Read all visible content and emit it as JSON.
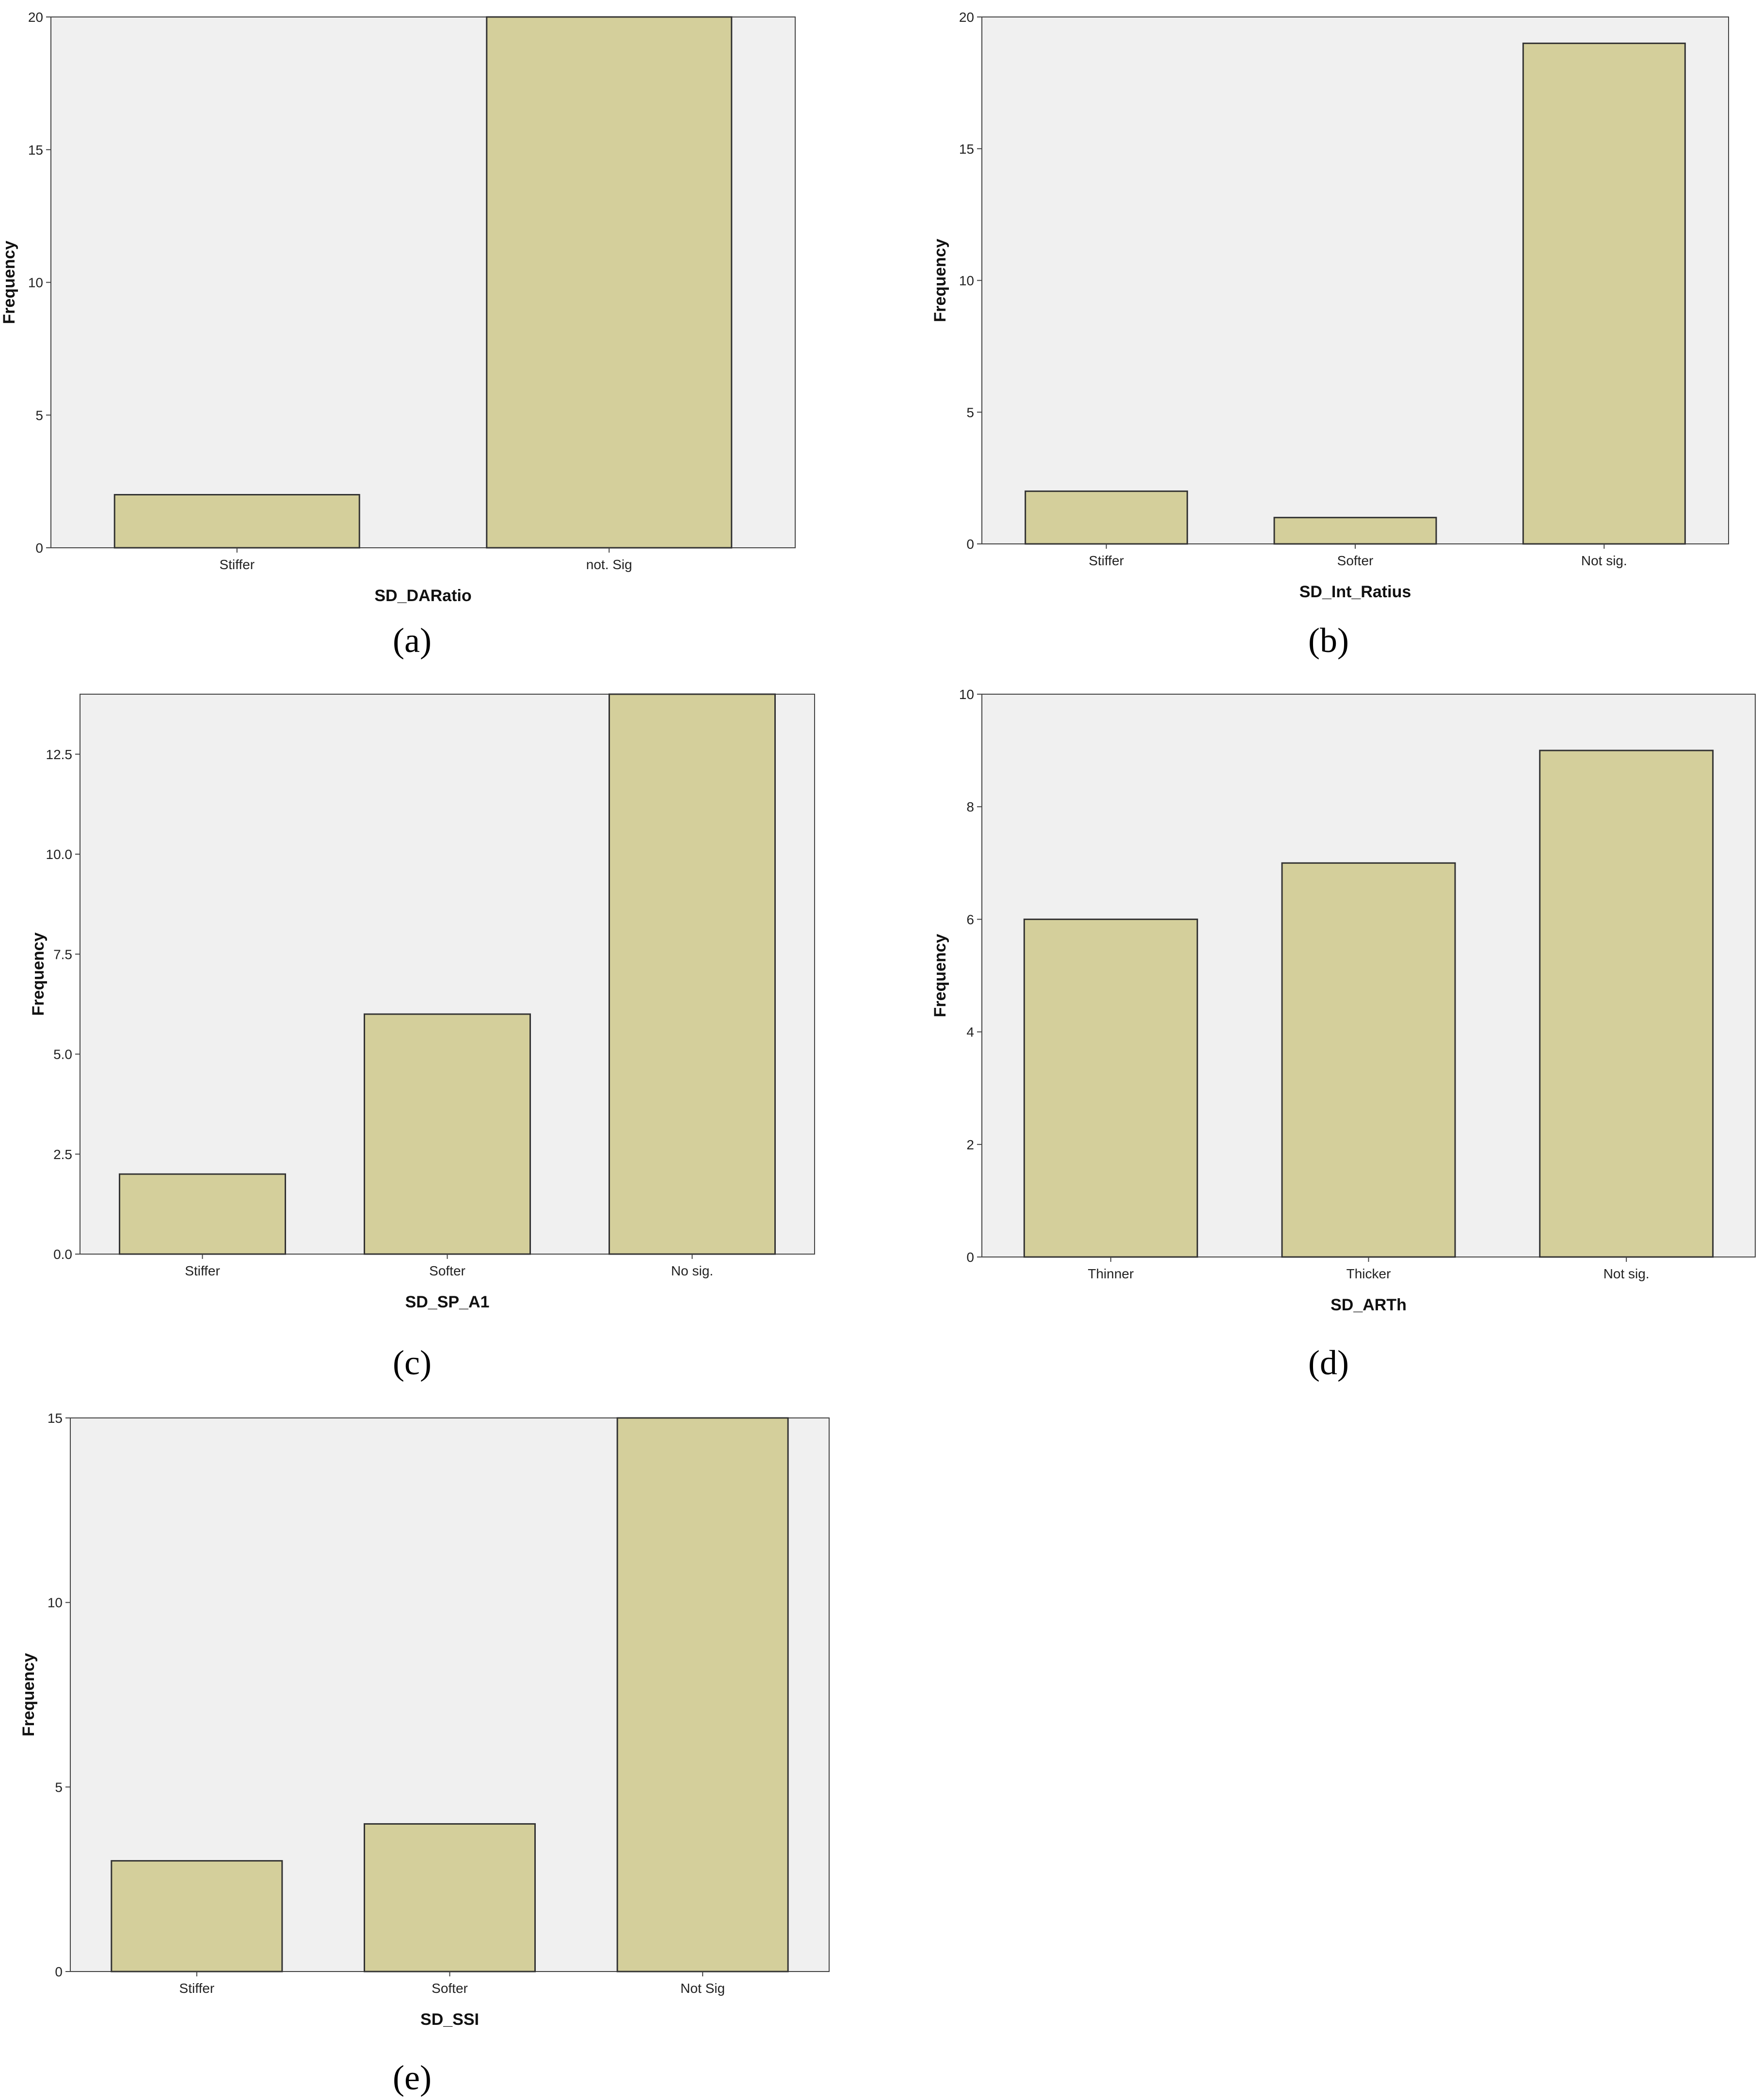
{
  "figure": {
    "colors": {
      "plot_bg": "#f0f0f0",
      "bar_fill": "#d4cf9b",
      "bar_stroke": "#333333",
      "axis": "#444444"
    }
  },
  "chart_data": [
    {
      "type": "bar",
      "panel": "a",
      "panel_label": "(a)",
      "xlabel": "SD_DARatio",
      "ylabel": "Frequency",
      "categories": [
        "Stiffer",
        "not. Sig"
      ],
      "values": [
        2,
        20
      ],
      "ylim": [
        0,
        20
      ],
      "yticks": [
        0,
        5,
        10,
        15,
        20
      ],
      "ytick_labels": [
        "0",
        "5",
        "10",
        "15",
        "20"
      ],
      "grid": false
    },
    {
      "type": "bar",
      "panel": "b",
      "panel_label": "(b)",
      "xlabel": "SD_Int_Ratius",
      "ylabel": "Frequency",
      "categories": [
        "Stiffer",
        "Softer",
        "Not sig."
      ],
      "values": [
        2,
        1,
        19
      ],
      "ylim": [
        0,
        20
      ],
      "yticks": [
        0,
        5,
        10,
        15,
        20
      ],
      "ytick_labels": [
        "0",
        "5",
        "10",
        "15",
        "20"
      ],
      "grid": false
    },
    {
      "type": "bar",
      "panel": "c",
      "panel_label": "(c)",
      "xlabel": "SD_SP_A1",
      "ylabel": "Frequency",
      "categories": [
        "Stiffer",
        "Softer",
        "No sig."
      ],
      "values": [
        2,
        6,
        14
      ],
      "ylim": [
        0,
        14
      ],
      "yticks": [
        0,
        2.5,
        5,
        7.5,
        10,
        12.5
      ],
      "ytick_labels": [
        "0.0",
        "2.5",
        "5.0",
        "7.5",
        "10.0",
        "12.5"
      ],
      "grid": false
    },
    {
      "type": "bar",
      "panel": "d",
      "panel_label": "(d)",
      "xlabel": "SD_ARTh",
      "ylabel": "Frequency",
      "categories": [
        "Thinner",
        "Thicker",
        "Not sig."
      ],
      "values": [
        6,
        7,
        9
      ],
      "ylim": [
        0,
        10
      ],
      "yticks": [
        0,
        2,
        4,
        6,
        8,
        10
      ],
      "ytick_labels": [
        "0",
        "2",
        "4",
        "6",
        "8",
        "10"
      ],
      "grid": false
    },
    {
      "type": "bar",
      "panel": "e",
      "panel_label": "(e)",
      "xlabel": "SD_SSI",
      "ylabel": "Frequency",
      "categories": [
        "Stiffer",
        "Softer",
        "Not Sig"
      ],
      "values": [
        3,
        4,
        15
      ],
      "ylim": [
        0,
        15
      ],
      "yticks": [
        0,
        5,
        10,
        15
      ],
      "ytick_labels": [
        "0",
        "5",
        "10",
        "15"
      ],
      "grid": false
    }
  ]
}
